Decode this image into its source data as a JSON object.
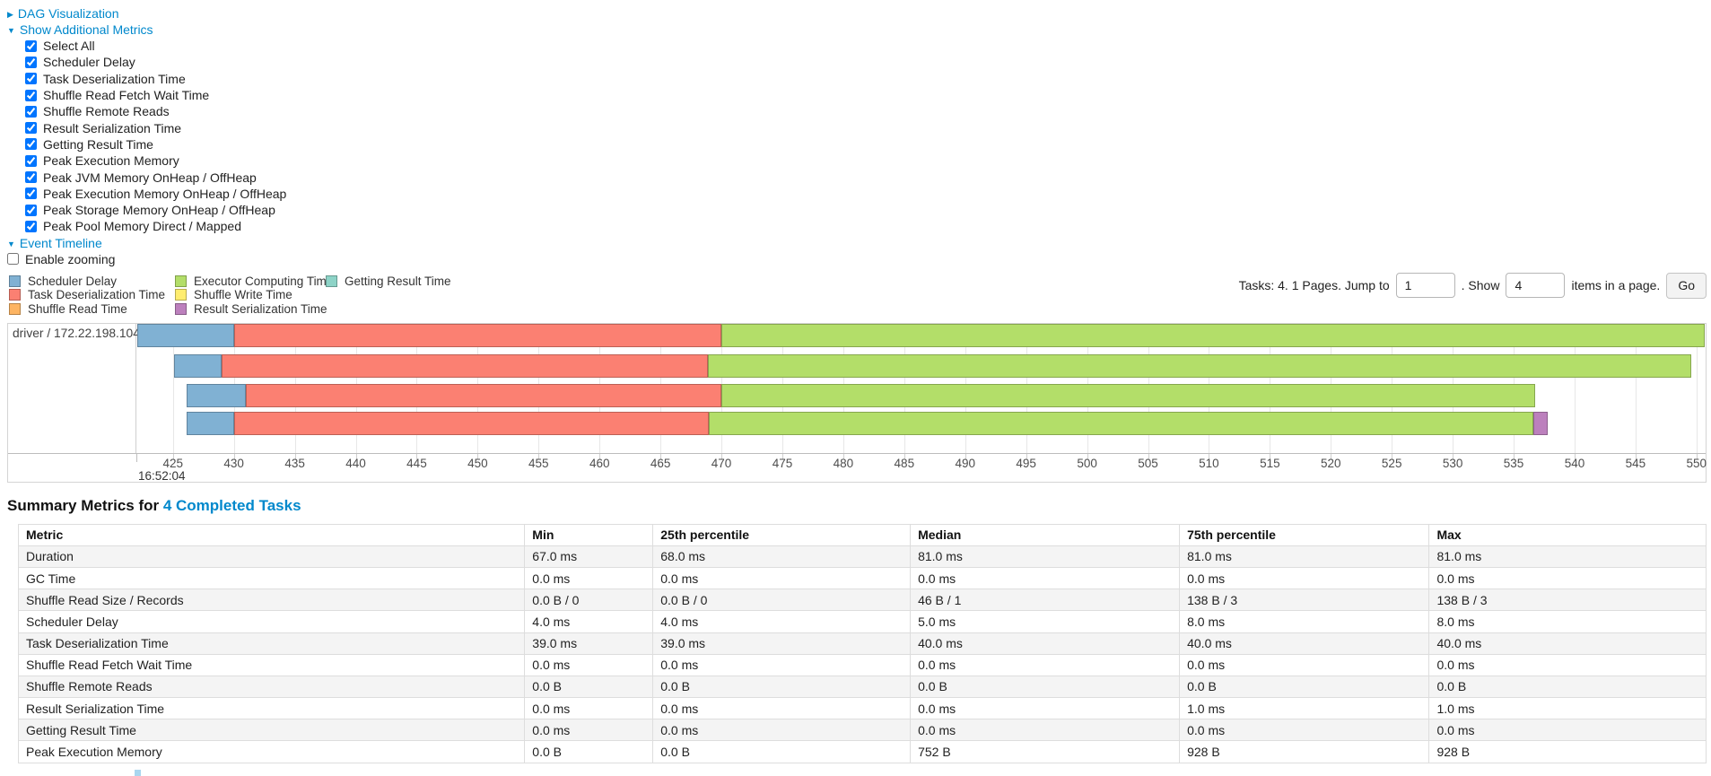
{
  "links": {
    "dag": {
      "arrow": "▶",
      "label": "DAG Visualization"
    },
    "metrics": {
      "arrow": "▼",
      "label": "Show Additional Metrics"
    },
    "timeline": {
      "arrow": "▼",
      "label": "Event Timeline"
    }
  },
  "metrics_panel": {
    "items": [
      {
        "label": "Select All",
        "checked": true
      },
      {
        "label": "Scheduler Delay",
        "checked": true
      },
      {
        "label": "Task Deserialization Time",
        "checked": true
      },
      {
        "label": "Shuffle Read Fetch Wait Time",
        "checked": true
      },
      {
        "label": "Shuffle Remote Reads",
        "checked": true
      },
      {
        "label": "Result Serialization Time",
        "checked": true
      },
      {
        "label": "Getting Result Time",
        "checked": true
      },
      {
        "label": "Peak Execution Memory",
        "checked": true
      },
      {
        "label": "Peak JVM Memory OnHeap / OffHeap",
        "checked": true
      },
      {
        "label": "Peak Execution Memory OnHeap / OffHeap",
        "checked": true
      },
      {
        "label": "Peak Storage Memory OnHeap / OffHeap",
        "checked": true
      },
      {
        "label": "Peak Pool Memory Direct / Mapped",
        "checked": true
      }
    ]
  },
  "enable_zooming": {
    "label": "Enable zooming",
    "checked": false
  },
  "legend": {
    "columns": [
      [
        {
          "name": "Scheduler Delay",
          "color": "#80B1D3"
        },
        {
          "name": "Task Deserialization Time",
          "color": "#FB8072"
        },
        {
          "name": "Shuffle Read Time",
          "color": "#FDB462"
        }
      ],
      [
        {
          "name": "Executor Computing Time",
          "color": "#B3DE69"
        },
        {
          "name": "Shuffle Write Time",
          "color": "#FFED6F"
        },
        {
          "name": "Result Serialization Time",
          "color": "#BC80BD"
        }
      ],
      [
        {
          "name": "Getting Result Time",
          "color": "#8DD3C7"
        }
      ]
    ]
  },
  "pagination": {
    "prefix": "Tasks: 4. 1 Pages. Jump to",
    "jump_value": "1",
    "middle": ". Show",
    "show_value": "4",
    "suffix": "items in a page.",
    "go_label": "Go"
  },
  "chart_data": {
    "type": "timeline-gantt",
    "group_label": "driver / 172.22.198.104",
    "axis": {
      "domain_min": 422.0,
      "domain_max": 550.75,
      "tick_start": 425,
      "tick_end": 550,
      "tick_step": 5,
      "time_label": "16:52:04"
    },
    "colors": {
      "scheduler_delay": "#80B1D3",
      "task_deserialization": "#FB8072",
      "shuffle_read": "#FDB462",
      "executor_computing": "#B3DE69",
      "shuffle_write": "#FFED6F",
      "result_serialization": "#BC80BD",
      "getting_result": "#8DD3C7"
    },
    "tasks": [
      {
        "segments": [
          {
            "type": "scheduler_delay",
            "start": 422.1,
            "end": 430.0
          },
          {
            "type": "task_deserialization",
            "start": 430.0,
            "end": 470.0
          },
          {
            "type": "executor_computing",
            "start": 470.0,
            "end": 550.7
          }
        ]
      },
      {
        "segments": [
          {
            "type": "scheduler_delay",
            "start": 425.1,
            "end": 429.0
          },
          {
            "type": "task_deserialization",
            "start": 429.0,
            "end": 468.9
          },
          {
            "type": "executor_computing",
            "start": 468.9,
            "end": 549.6
          }
        ]
      },
      {
        "segments": [
          {
            "type": "scheduler_delay",
            "start": 426.1,
            "end": 431.0
          },
          {
            "type": "task_deserialization",
            "start": 431.0,
            "end": 470.0
          },
          {
            "type": "executor_computing",
            "start": 470.0,
            "end": 536.8
          }
        ]
      },
      {
        "segments": [
          {
            "type": "scheduler_delay",
            "start": 426.1,
            "end": 430.0
          },
          {
            "type": "task_deserialization",
            "start": 430.0,
            "end": 469.0
          },
          {
            "type": "executor_computing",
            "start": 469.0,
            "end": 536.6
          },
          {
            "type": "result_serialization",
            "start": 536.6,
            "end": 537.8
          }
        ]
      }
    ]
  },
  "summary": {
    "title_prefix": "Summary Metrics for ",
    "title_link": "4 Completed Tasks",
    "table": {
      "headers": [
        "Metric",
        "Min",
        "25th percentile",
        "Median",
        "75th percentile",
        "Max"
      ],
      "rows": [
        {
          "metric": "Duration",
          "values": [
            "67.0 ms",
            "68.0 ms",
            "81.0 ms",
            "81.0 ms",
            "81.0 ms"
          ]
        },
        {
          "metric": "GC Time",
          "values": [
            "0.0 ms",
            "0.0 ms",
            "0.0 ms",
            "0.0 ms",
            "0.0 ms"
          ]
        },
        {
          "metric": "Shuffle Read Size / Records",
          "values": [
            "0.0 B / 0",
            "0.0 B / 0",
            "46 B / 1",
            "138 B / 3",
            "138 B / 3"
          ]
        },
        {
          "metric": "Scheduler Delay",
          "values": [
            "4.0 ms",
            "4.0 ms",
            "5.0 ms",
            "8.0 ms",
            "8.0 ms"
          ]
        },
        {
          "metric": "Task Deserialization Time",
          "values": [
            "39.0 ms",
            "39.0 ms",
            "40.0 ms",
            "40.0 ms",
            "40.0 ms"
          ]
        },
        {
          "metric": "Shuffle Read Fetch Wait Time",
          "values": [
            "0.0 ms",
            "0.0 ms",
            "0.0 ms",
            "0.0 ms",
            "0.0 ms"
          ]
        },
        {
          "metric": "Shuffle Remote Reads",
          "values": [
            "0.0 B",
            "0.0 B",
            "0.0 B",
            "0.0 B",
            "0.0 B"
          ]
        },
        {
          "metric": "Result Serialization Time",
          "values": [
            "0.0 ms",
            "0.0 ms",
            "0.0 ms",
            "1.0 ms",
            "1.0 ms"
          ]
        },
        {
          "metric": "Getting Result Time",
          "values": [
            "0.0 ms",
            "0.0 ms",
            "0.0 ms",
            "0.0 ms",
            "0.0 ms"
          ]
        },
        {
          "metric": "Peak Execution Memory",
          "values": [
            "0.0 B",
            "0.0 B",
            "752 B",
            "928 B",
            "928 B"
          ]
        }
      ]
    }
  }
}
